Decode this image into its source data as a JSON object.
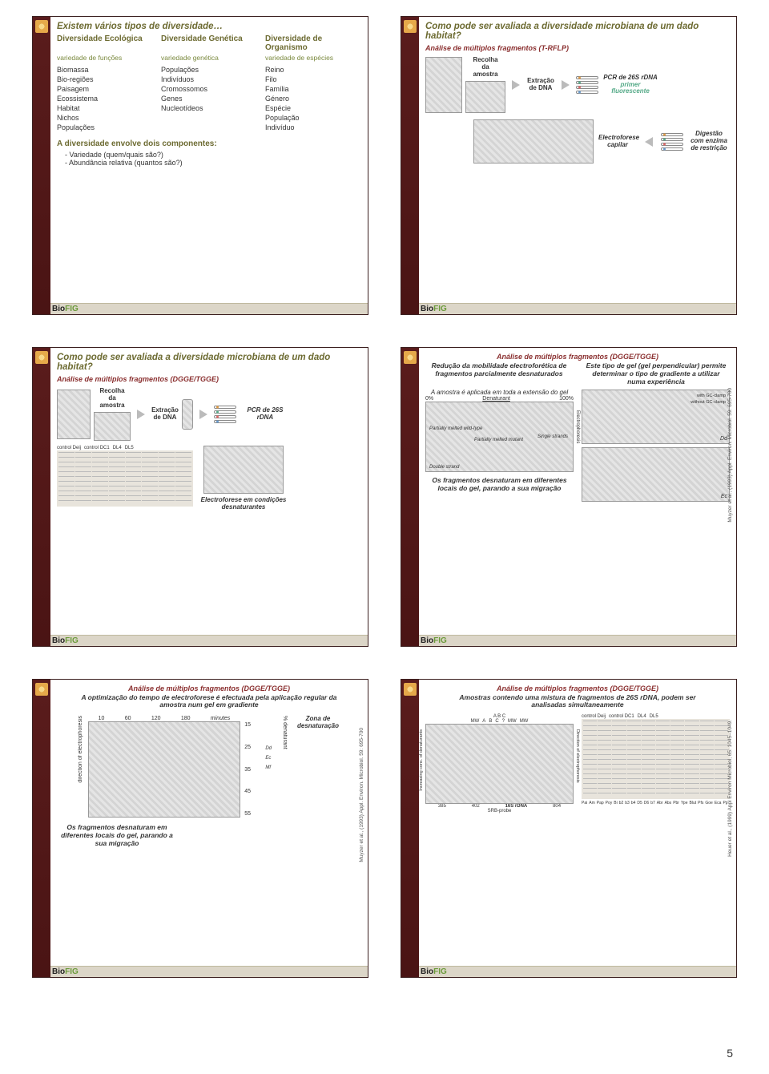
{
  "page_number": "5",
  "footer_logo": "BioFIG",
  "colors": {
    "olive": "#6d6b32",
    "olive_light": "#7b8a3f",
    "accent": "#8a2f2f",
    "sidebar": "#4a1414"
  },
  "slide1": {
    "title": "Existem vários tipos de diversidade…",
    "cols": [
      {
        "header": "Diversidade Ecológica",
        "sub": "variedade de funções",
        "items": [
          "Biomassa",
          "Bio-regiões",
          "Paisagem",
          "Ecossistema",
          "Habitat",
          "Nichos",
          "Populações"
        ]
      },
      {
        "header": "Diversidade Genética",
        "sub": "variedade genética",
        "items": [
          "Populações",
          "Indivíduos",
          "Cromossomos",
          "Genes",
          "Nucleotídeos",
          "",
          ""
        ]
      },
      {
        "header": "Diversidade de Organismo",
        "sub": "variedade de espécies",
        "items": [
          "Reino",
          "Filo",
          "Família",
          "Género",
          "Espécie",
          "População",
          "Indivíduo"
        ]
      }
    ],
    "components_head": "A diversidade envolve dois componentes:",
    "components": [
      "Variedade (quem/quais são?)",
      "Abundância relativa (quantos são?)"
    ]
  },
  "slide2": {
    "title": "Como pode ser avaliada a diversidade microbiana de um dado habitat?",
    "subtitle": "Análise de múltiplos fragmentos (T-RFLP)",
    "step_sample": "Recolha da amostra",
    "step_dna": "Extração de DNA",
    "step_pcr_l1": "PCR de 26S rDNA",
    "step_pcr_l2": "primer fluorescente",
    "step_digest": "Digestão com enzima de restrição",
    "step_electro": "Electroforese capilar"
  },
  "slide3": {
    "title": "Como pode ser avaliada a diversidade microbiana de um dado habitat?",
    "subtitle": "Análise de múltiplos fragmentos (DGGE/TGGE)",
    "step_sample": "Recolha da amostra",
    "step_dna": "Extração de DNA",
    "step_pcr": "PCR de 26S rDNA",
    "step_electro": "Electroforese em condições desnaturantes",
    "gel_lane_labels": [
      "control Deij",
      "control DC1",
      "DL4",
      "DL5"
    ],
    "gel_band_labels": [
      "B1",
      "B2"
    ]
  },
  "slide4": {
    "title": "Análise de múltiplos fragmentos (DGGE/TGGE)",
    "left_head": "Redução da mobilidade electroforética de fragmentos parcialmente desnaturados",
    "right_head": "Este tipo de gel (gel perpendicular) permite determinar o tipo de gradiente a utilizar numa experiência",
    "diagram": {
      "top_label": "A amostra é aplicada em toda a extensão do gel",
      "denaturant": "Denaturant",
      "pct0": "0%",
      "pct100": "100%",
      "partial_wild": "Partially melted wild-type",
      "partial_mutant": "Partially melted mutant",
      "single_strands": "Single strands",
      "double_strand": "Double strand",
      "side_label": "Electrophoresis"
    },
    "bottom_left": "Os fragmentos desnaturam em diferentes locais do gel, parando a sua migração",
    "graph_legend": [
      "with GC-clamp",
      "without GC-clamp"
    ],
    "graph_labels": [
      "Dd",
      "Ec"
    ],
    "citation": "Muyzer et al., (1993) Appl. Environ. Microbiol. 59: 695-700"
  },
  "slide5": {
    "title": "Análise de múltiplos fragmentos (DGGE/TGGE)",
    "subtitle": "A optimização do tempo de electroforese é efectuada pela aplicação regular da amostra num gel em gradiente",
    "minutes_label": "minutes",
    "minutes": [
      "10",
      "60",
      "120",
      "180"
    ],
    "denat_pct": [
      "15",
      "25",
      "35",
      "45",
      "55"
    ],
    "side_label": "direction of electrophoresis",
    "right_label": "% denaturant",
    "zone_label": "Zona de desnaturação",
    "species_codes": [
      "Dd",
      "Ec",
      "Mf"
    ],
    "bottom": "Os fragmentos desnaturam em diferentes locais do gel, parando a sua migração",
    "citation": "Muyzer et al., (1993) Appl. Environ. Microbiol. 59: 695-700"
  },
  "slide6": {
    "title": "Análise de múltiplos fragmentos (DGGE/TGGE)",
    "subtitle": "Amostras contendo uma mistura de fragmentos de 26S rDNA, podem ser analisadas simultaneamente",
    "left_gel": {
      "top_labels_row1": [
        "A",
        "B",
        "C"
      ],
      "top_labels_row2": [
        "A",
        "B",
        "C",
        "?"
      ],
      "mw": "MW",
      "side_left": "Increasing conc. of denaturants",
      "side_right": "Direction of electrophoresis",
      "bottom_probe": "SRB-probe",
      "bottom_nums": [
        "385",
        "402",
        "804"
      ],
      "rdna": "16S rDNA",
      "bottom_row": [
        "p1",
        "341",
        "534"
      ]
    },
    "right_gel": {
      "lane_labels": [
        "control Deij",
        "control DC1",
        "DL4",
        "DL5"
      ],
      "band_labels": [
        "B1",
        "B2"
      ]
    },
    "species_row": [
      "Pai",
      "Am",
      "Pap",
      "Poy",
      "Bi",
      "b2",
      "b3",
      "b4",
      "D5",
      "D6",
      "b7",
      "Abr",
      "Abs",
      "Pbr",
      "Ype",
      "Blut",
      "Pfs",
      "Goe",
      "Eca",
      "Pp"
    ],
    "citation": "Heuer et al., (1999) Appl Environ Microbiol, 65: 1045–1049."
  }
}
